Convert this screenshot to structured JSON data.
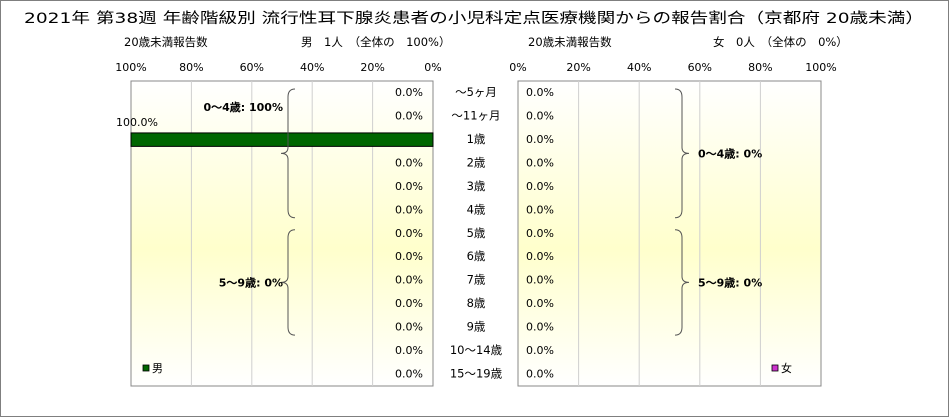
{
  "chart_data": {
    "type": "bar",
    "title": "2021年 第38週 年齢階級別 流行性耳下腺炎患者の小児科定点医療機関からの報告割合（京都府 20歳未満）",
    "categories": [
      "〜5ヶ月",
      "〜11ヶ月",
      "1歳",
      "2歳",
      "3歳",
      "4歳",
      "5歳",
      "6歳",
      "7歳",
      "8歳",
      "9歳",
      "10〜14歳",
      "15〜19歳"
    ],
    "left_panel": {
      "caption": "20歳未満報告数",
      "summary": "男　1人　（全体の　100%）",
      "axis_ticks": [
        "100%",
        "80%",
        "60%",
        "40%",
        "20%",
        "0%"
      ],
      "xlim": [
        100,
        0
      ],
      "series_name": "男",
      "color": "#006600",
      "values": [
        0,
        0,
        100,
        0,
        0,
        0,
        0,
        0,
        0,
        0,
        0,
        0,
        0
      ],
      "value_labels": [
        "0.0%",
        "0.0%",
        "100.0%",
        "0.0%",
        "0.0%",
        "0.0%",
        "0.0%",
        "0.0%",
        "0.0%",
        "0.0%",
        "0.0%",
        "0.0%",
        "0.0%"
      ],
      "groups": [
        {
          "label": "0〜4歳: 100%",
          "from": 0,
          "to": 5
        },
        {
          "label": "5〜9歳: 0%",
          "from": 6,
          "to": 10
        }
      ]
    },
    "right_panel": {
      "caption": "20歳未満報告数",
      "summary": "女　0人　（全体の　0%）",
      "axis_ticks": [
        "0%",
        "20%",
        "40%",
        "60%",
        "80%",
        "100%"
      ],
      "xlim": [
        0,
        100
      ],
      "series_name": "女",
      "color": "#cc33cc",
      "values": [
        0,
        0,
        0,
        0,
        0,
        0,
        0,
        0,
        0,
        0,
        0,
        0,
        0
      ],
      "value_labels": [
        "0.0%",
        "0.0%",
        "0.0%",
        "0.0%",
        "0.0%",
        "0.0%",
        "0.0%",
        "0.0%",
        "0.0%",
        "0.0%",
        "0.0%",
        "0.0%",
        "0.0%"
      ],
      "groups": [
        {
          "label": "0〜4歳: 0%",
          "from": 0,
          "to": 5
        },
        {
          "label": "5〜9歳: 0%",
          "from": 6,
          "to": 10
        }
      ]
    },
    "grid": true
  }
}
